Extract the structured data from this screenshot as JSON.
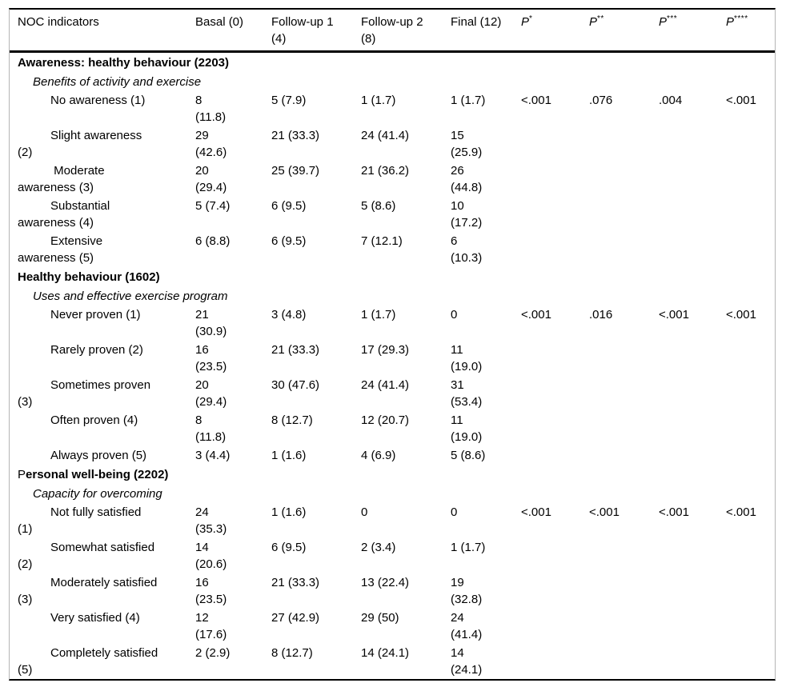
{
  "page": {
    "background": "#ffffff",
    "text_color": "#000000",
    "rule_color": "#000000",
    "edge_line_color": "#b6b6b6"
  },
  "table": {
    "columns": [
      {
        "key": "label",
        "label": "NOC indicators",
        "italic": false
      },
      {
        "key": "basal",
        "label": "Basal (0)",
        "italic": false
      },
      {
        "key": "followup1",
        "label": "Follow-up 1\n(4)",
        "italic": false
      },
      {
        "key": "followup2",
        "label": "Follow-up 2\n(8)",
        "italic": false
      },
      {
        "key": "final",
        "label": "Final (12)",
        "italic": false
      },
      {
        "key": "p1",
        "label": "P",
        "sup": "*",
        "italic": true
      },
      {
        "key": "p2",
        "label": "P",
        "sup": "**",
        "italic": true
      },
      {
        "key": "p3",
        "label": "P",
        "sup": "***",
        "italic": true
      },
      {
        "key": "p4",
        "label": "P",
        "sup": "****",
        "italic": true
      }
    ],
    "rows": [
      {
        "type": "section",
        "lead": "",
        "rest": "Awareness: healthy behaviour (2203)"
      },
      {
        "type": "subsection",
        "label": "Benefits of activity and exercise"
      },
      {
        "type": "indicator",
        "label": "No awareness (1)",
        "cells": [
          "8\n(11.8)",
          "5 (7.9)",
          "1 (1.7)",
          "1 (1.7)",
          "<.001",
          ".076",
          ".004",
          "<.001"
        ]
      },
      {
        "type": "indicator",
        "label": "Slight awareness\n(2)",
        "cells": [
          "29\n(42.6)",
          "21 (33.3)",
          "24 (41.4)",
          "15\n(25.9)",
          "",
          "",
          "",
          ""
        ]
      },
      {
        "type": "indicator",
        "label": " Moderate\nawareness (3)",
        "cells": [
          "20\n(29.4)",
          "25 (39.7)",
          "21 (36.2)",
          "26\n(44.8)",
          "",
          "",
          "",
          ""
        ]
      },
      {
        "type": "indicator",
        "label": "Substantial\nawareness (4)",
        "cells": [
          "5 (7.4)",
          "6 (9.5)",
          "5 (8.6)",
          "10\n(17.2)",
          "",
          "",
          "",
          ""
        ]
      },
      {
        "type": "indicator",
        "label": "Extensive\nawareness (5)",
        "cells": [
          "6 (8.8)",
          "6 (9.5)",
          "7 (12.1)",
          "6\n(10.3)",
          "",
          "",
          "",
          ""
        ]
      },
      {
        "type": "section",
        "lead": "",
        "rest": "Healthy behaviour (1602)"
      },
      {
        "type": "subsection",
        "label": "Uses and effective exercise program"
      },
      {
        "type": "indicator",
        "label": "Never proven (1)",
        "cells": [
          "21\n(30.9)",
          "3 (4.8)",
          "1 (1.7)",
          "0",
          "<.001",
          ".016",
          "<.001",
          "<.001"
        ]
      },
      {
        "type": "indicator",
        "label": "Rarely proven (2)",
        "cells": [
          "16\n(23.5)",
          "21 (33.3)",
          "17 (29.3)",
          "11\n(19.0)",
          "",
          "",
          "",
          ""
        ]
      },
      {
        "type": "indicator",
        "label": "Sometimes proven\n(3)",
        "cells": [
          "20\n(29.4)",
          "30 (47.6)",
          "24 (41.4)",
          "31\n(53.4)",
          "",
          "",
          "",
          ""
        ]
      },
      {
        "type": "indicator",
        "label": "Often proven (4)",
        "cells": [
          "8\n(11.8)",
          "8 (12.7)",
          "12 (20.7)",
          "11\n(19.0)",
          "",
          "",
          "",
          ""
        ]
      },
      {
        "type": "indicator",
        "label": "Always proven (5)",
        "cells": [
          "3 (4.4)",
          "1 (1.6)",
          "4 (6.9)",
          "5 (8.6)",
          "",
          "",
          "",
          ""
        ]
      },
      {
        "type": "section",
        "lead": "P",
        "rest": "ersonal well-being (2202)"
      },
      {
        "type": "subsection",
        "label": "Capacity for overcoming"
      },
      {
        "type": "indicator",
        "label": "Not fully satisfied\n(1)",
        "cells": [
          "24\n(35.3)",
          "1 (1.6)",
          "0",
          "0",
          "<.001",
          "<.001",
          "<.001",
          "<.001"
        ]
      },
      {
        "type": "indicator",
        "label": "Somewhat satisfied\n(2)",
        "cells": [
          "14\n(20.6)",
          "6 (9.5)",
          "2 (3.4)",
          "1 (1.7)",
          "",
          "",
          "",
          ""
        ]
      },
      {
        "type": "indicator",
        "label": "Moderately satisfied\n(3)",
        "cells": [
          "16\n(23.5)",
          "21 (33.3)",
          "13 (22.4)",
          "19\n(32.8)",
          "",
          "",
          "",
          ""
        ]
      },
      {
        "type": "indicator",
        "label": "Very satisfied (4)",
        "cells": [
          "12\n(17.6)",
          "27 (42.9)",
          "29 (50)",
          "24\n(41.4)",
          "",
          "",
          "",
          ""
        ]
      },
      {
        "type": "indicator",
        "label": "Completely satisfied\n(5)",
        "cells": [
          "2 (2.9)",
          "8 (12.7)",
          "14 (24.1)",
          "14\n(24.1)",
          "",
          "",
          "",
          ""
        ]
      }
    ]
  }
}
